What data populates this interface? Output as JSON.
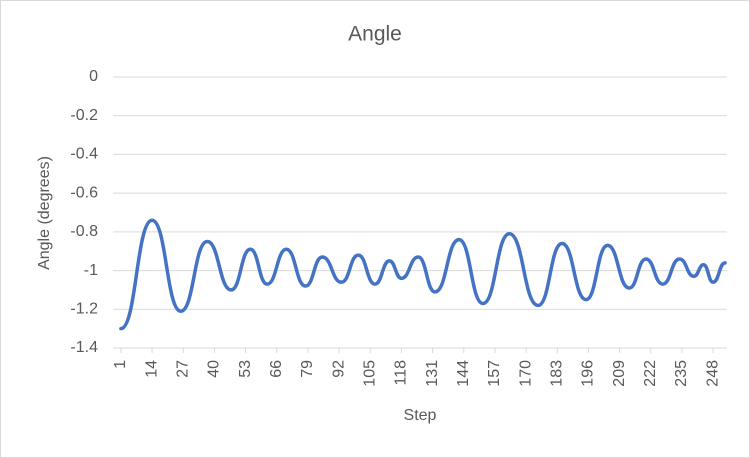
{
  "chart_data": {
    "type": "line",
    "title": "Angle",
    "x_label": "Step",
    "y_label": "Angle (degrees)",
    "x": [
      1,
      14,
      26,
      37,
      47,
      55,
      62,
      70,
      78,
      85,
      93,
      100,
      107,
      113,
      118,
      125,
      132,
      142,
      152,
      163,
      175,
      185,
      195,
      204,
      213,
      220,
      227,
      234,
      240,
      244,
      248,
      253
    ],
    "series": [
      {
        "name": "Angle",
        "color": "#4472c4",
        "values": [
          -1.3,
          -0.74,
          -1.21,
          -0.85,
          -1.1,
          -0.89,
          -1.07,
          -0.89,
          -1.08,
          -0.93,
          -1.06,
          -0.92,
          -1.07,
          -0.95,
          -1.04,
          -0.93,
          -1.11,
          -0.84,
          -1.17,
          -0.81,
          -1.18,
          -0.86,
          -1.15,
          -0.87,
          -1.09,
          -0.94,
          -1.07,
          -0.94,
          -1.03,
          -0.97,
          -1.06,
          -0.96
        ]
      }
    ],
    "xlim": [
      -2.3,
      253.8
    ],
    "xticks": [
      1,
      14,
      27,
      40,
      53,
      66,
      79,
      92,
      105,
      118,
      131,
      144,
      157,
      170,
      183,
      196,
      209,
      222,
      235,
      248
    ],
    "ylim": [
      -1.4,
      0
    ],
    "yticks": [
      0,
      -0.2,
      -0.4,
      -0.6,
      -0.8,
      -1,
      -1.2,
      -1.4
    ],
    "grid": true
  }
}
